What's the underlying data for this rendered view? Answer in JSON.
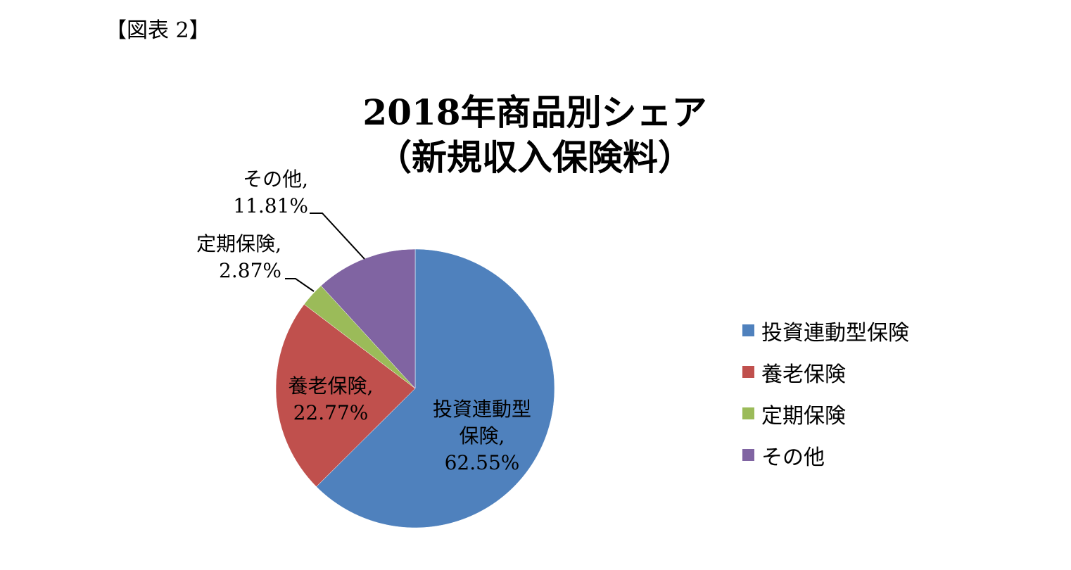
{
  "figure_label": "【図表 2】",
  "title_line1": "2018年商品別シェア",
  "title_line2": "（新規収入保険料）",
  "chart_data": {
    "type": "pie",
    "title": "2018年商品別シェア（新規収入保険料）",
    "categories": [
      "投資連動型保険",
      "養老保険",
      "定期保険",
      "その他"
    ],
    "values": [
      62.55,
      22.77,
      2.87,
      11.81
    ],
    "unit": "%",
    "colors": [
      "#4F81BD",
      "#C0504D",
      "#9BBB59",
      "#8064A2"
    ],
    "legend_position": "right",
    "data_labels": [
      {
        "name": "投資連動型保険",
        "line1": "投資連動型",
        "line2": "保険,",
        "line3": "62.55%"
      },
      {
        "name": "養老保険",
        "line1": "養老保険,",
        "line2": "22.77%"
      },
      {
        "name": "定期保険",
        "line1": "定期保険,",
        "line2": "2.87%"
      },
      {
        "name": "その他",
        "line1": "その他,",
        "line2": "11.81%"
      }
    ]
  },
  "legend": [
    {
      "label": "投資連動型保険",
      "color": "#4F81BD"
    },
    {
      "label": "養老保険",
      "color": "#C0504D"
    },
    {
      "label": "定期保険",
      "color": "#9BBB59"
    },
    {
      "label": "その他",
      "color": "#8064A2"
    }
  ]
}
